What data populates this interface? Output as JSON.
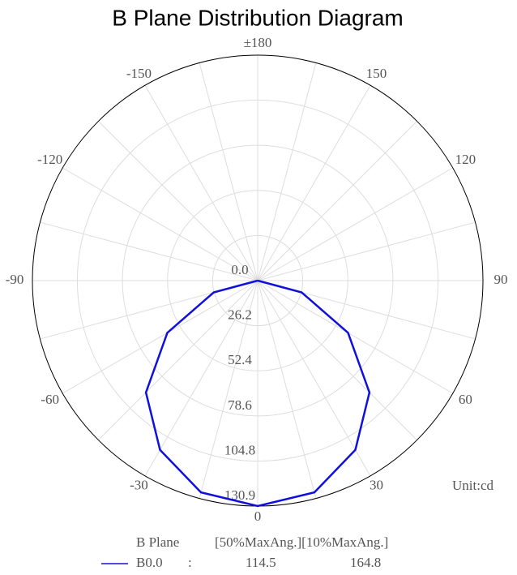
{
  "chart_data": {
    "type": "polar",
    "title": "B Plane Distribution Diagram",
    "theta": [
      -90,
      -75,
      -60,
      -45,
      -30,
      -15,
      0,
      15,
      30,
      45,
      60,
      75,
      90
    ],
    "series": [
      {
        "name": "B0.0",
        "separator": ":",
        "color": "#1010dd",
        "values": [
          0,
          26.4,
          60.6,
          91.8,
          113.5,
          127.3,
          130.9,
          127.3,
          113.5,
          91.8,
          60.6,
          26.4,
          0
        ],
        "stats": [
          114.5,
          164.8
        ]
      }
    ],
    "rlim": [
      0,
      130.9
    ],
    "rticks": [
      {
        "value": 0,
        "label": "0.0"
      },
      26.2,
      52.4,
      78.6,
      104.8,
      130.9
    ],
    "thetaticks": [
      0,
      30,
      60,
      90,
      120,
      150,
      {
        "value": 180,
        "label": "±180"
      },
      -150,
      -120,
      -90,
      -60,
      -30
    ],
    "unit": "Unit:cd",
    "legend_header": [
      "B Plane",
      "[50%MaxAng.][10%MaxAng.]"
    ],
    "grid": true
  }
}
